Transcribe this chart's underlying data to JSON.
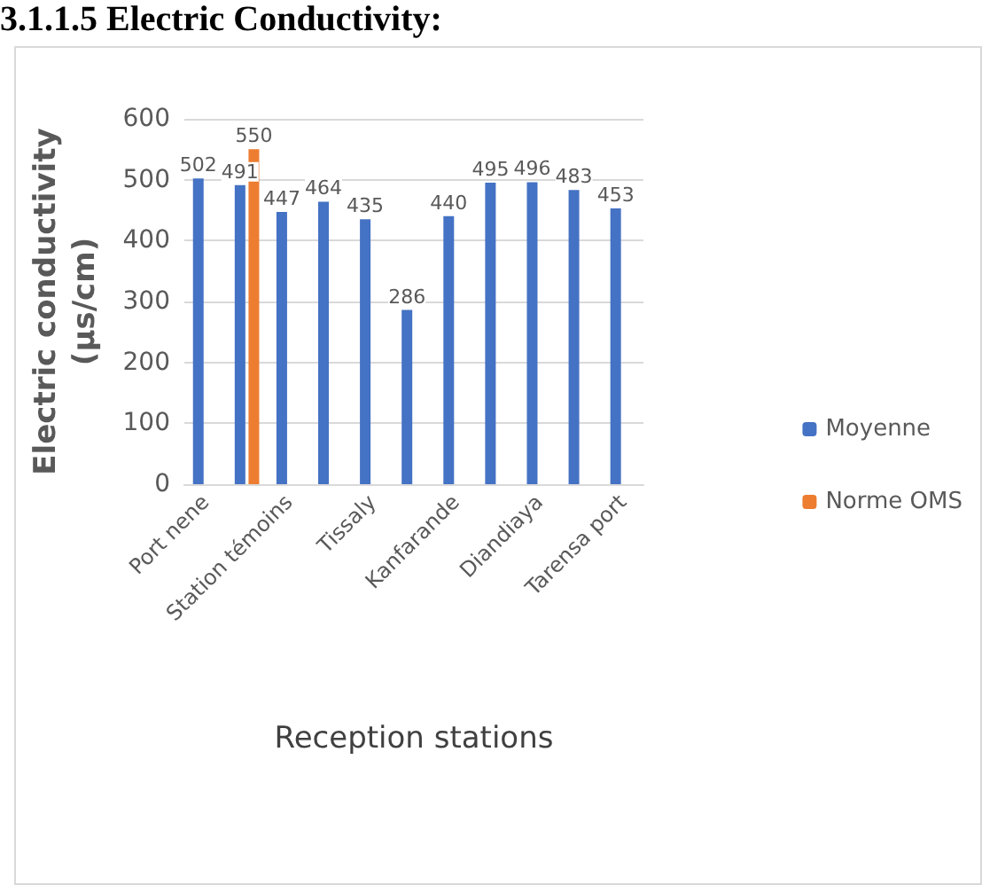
{
  "chart_data": {
    "type": "bar",
    "title": "3.1.1.5 Electric Conductivity:",
    "xlabel": "Reception stations",
    "ylabel": "Electric conductivity\n(µs/cm)",
    "categories": [
      "Port nene",
      null,
      "Station témoins",
      null,
      "Tissaly",
      null,
      "Kanfarande",
      null,
      "Diandiaya",
      null,
      "Tarensa port"
    ],
    "series": [
      {
        "name": "Moyenne",
        "color": "#4472c4",
        "values": [
          502,
          491,
          447,
          464,
          435,
          286,
          440,
          495,
          496,
          483,
          453
        ]
      },
      {
        "name": "Norme OMS",
        "color": "#ed7d31",
        "values": [
          null,
          550,
          null,
          null,
          null,
          null,
          null,
          null,
          null,
          null,
          null
        ]
      }
    ],
    "ylim": [
      0,
      600
    ],
    "yticks": [
      0,
      100,
      200,
      300,
      400,
      500,
      600
    ],
    "grid": "y",
    "legend": "right",
    "data_labels": true
  }
}
